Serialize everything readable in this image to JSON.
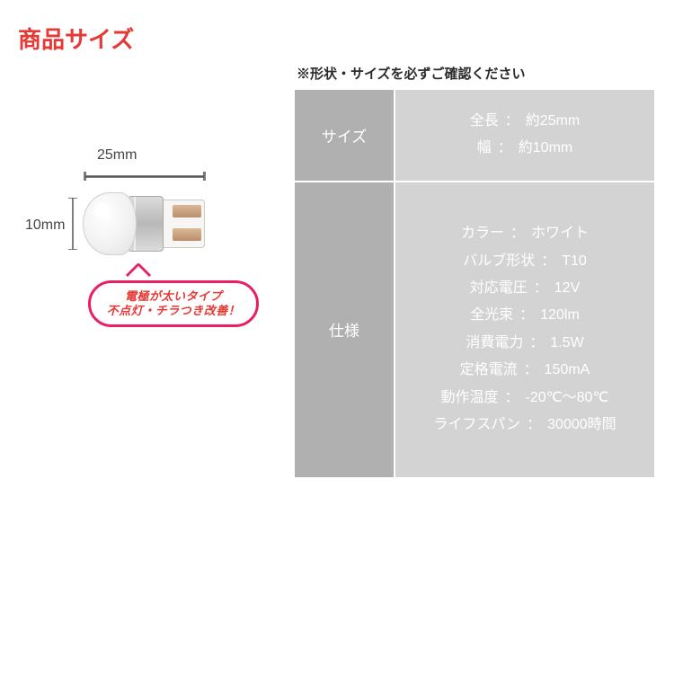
{
  "title": {
    "text": "商品サイズ",
    "color": "#e53935"
  },
  "subtitle": "※形状・サイズを必ずご確認ください",
  "diagram": {
    "length_label": "25mm",
    "width_label": "10mm",
    "bracket_color": "#555555",
    "bubble": {
      "line1": "電極が太いタイプ",
      "line2": "不点灯・チラつき改善！",
      "border_color": "#e91e63",
      "text_color": "#e53935"
    }
  },
  "table": {
    "header_bg": "#b0b0b0",
    "value_bg": "#d3d3d3",
    "value_text_color": "#ffffff",
    "border_color": "#ffffff",
    "rows": [
      {
        "header": "サイズ",
        "lines": [
          {
            "label": "全長",
            "value": "約25mm"
          },
          {
            "label": "幅",
            "value": "約10mm"
          }
        ]
      },
      {
        "header": "仕様",
        "lines": [
          {
            "label": "カラー",
            "value": "ホワイト"
          },
          {
            "label": "バルブ形状",
            "value": "T10"
          },
          {
            "label": "対応電圧",
            "value": "12V"
          },
          {
            "label": "全光束",
            "value": "120lm"
          },
          {
            "label": "消費電力",
            "value": "1.5W"
          },
          {
            "label": "定格電流",
            "value": "150mA"
          },
          {
            "label": "動作温度",
            "value": "-20℃〜80℃"
          },
          {
            "label": "ライフスパン",
            "value": "30000時間"
          }
        ]
      }
    ]
  }
}
